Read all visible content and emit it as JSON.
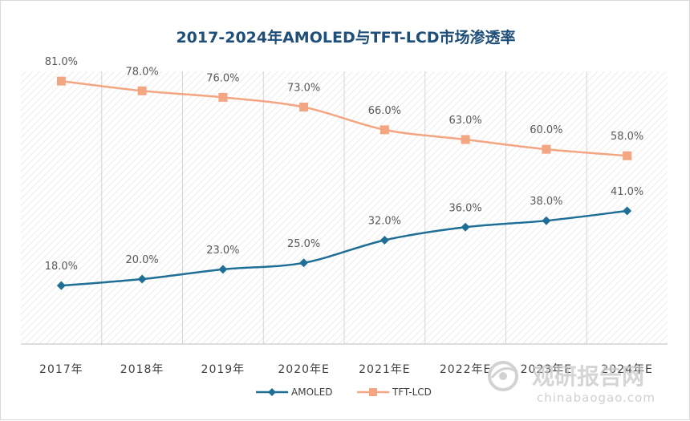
{
  "chart_data": {
    "type": "line",
    "title": "2017-2024年AMOLED与TFT-LCD市场渗透率",
    "categories": [
      "2017年",
      "2018年",
      "2019年",
      "2020年E",
      "2021年E",
      "2022年E",
      "2023年E",
      "2024年E"
    ],
    "series": [
      {
        "name": "AMOLED",
        "values": [
          18.0,
          20.0,
          23.0,
          25.0,
          32.0,
          36.0,
          38.0,
          41.0
        ],
        "labels": [
          "18.0%",
          "20.0%",
          "23.0%",
          "25.0%",
          "32.0%",
          "36.0%",
          "38.0%",
          "41.0%"
        ],
        "color": "#1f6e96",
        "marker": "diamond"
      },
      {
        "name": "TFT-LCD",
        "values": [
          81.0,
          78.0,
          76.0,
          73.0,
          66.0,
          63.0,
          60.0,
          58.0
        ],
        "labels": [
          "81.0%",
          "78.0%",
          "76.0%",
          "73.0%",
          "66.0%",
          "63.0%",
          "60.0%",
          "58.0%"
        ],
        "color": "#f4a582",
        "marker": "square"
      }
    ],
    "ylim": [
      0,
      84
    ],
    "grid": "vertical",
    "legend": "bottom-center"
  },
  "watermark": {
    "brand": "观研报告网",
    "site": "chinabaogao.com"
  }
}
